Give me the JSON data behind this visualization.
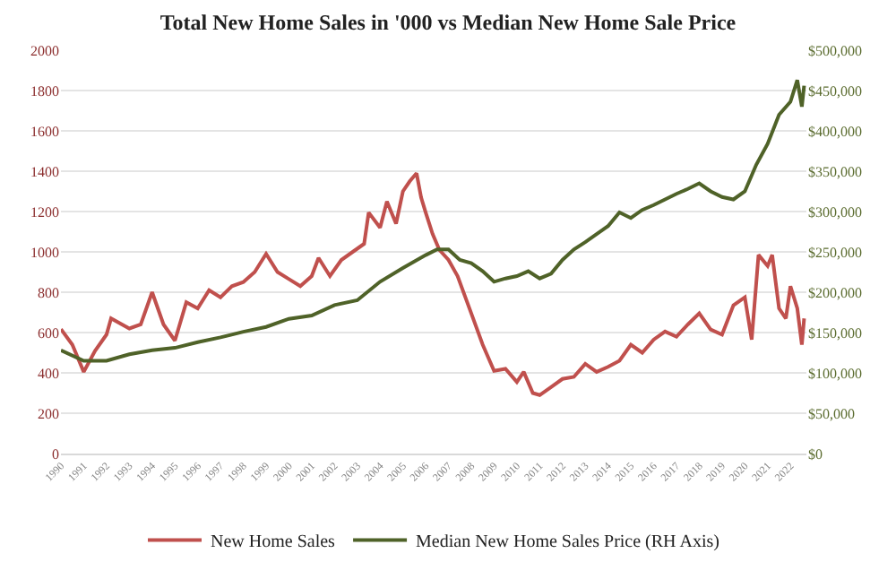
{
  "chart_data": {
    "type": "line",
    "title": "Total New Home Sales in '000 vs Median New Home Sale Price",
    "series": [
      {
        "name": "New Home Sales",
        "color": "#c0504d",
        "axis": "y",
        "x": [
          1990,
          1990.5,
          1991,
          1991.5,
          1992,
          1992.2,
          1993,
          1993.5,
          1994,
          1994.5,
          1995,
          1995.5,
          1996,
          1996.5,
          1997,
          1997.5,
          1998,
          1998.5,
          1999,
          1999.5,
          2000,
          2000.5,
          2001,
          2001.3,
          2001.8,
          2002.3,
          2002.8,
          2003.3,
          2003.5,
          2004,
          2004.3,
          2004.7,
          2005,
          2005.3,
          2005.6,
          2005.8,
          2006,
          2006.3,
          2006.6,
          2007,
          2007.4,
          2008,
          2008.5,
          2009,
          2009.5,
          2010,
          2010.3,
          2010.7,
          2011,
          2011.5,
          2012,
          2012.5,
          2013,
          2013.5,
          2014,
          2014.5,
          2015,
          2015.5,
          2016,
          2016.5,
          2017,
          2017.5,
          2018,
          2018.5,
          2019,
          2019.5,
          2020,
          2020.3,
          2020.6,
          2021,
          2021.2,
          2021.5,
          2021.8,
          2022,
          2022.3,
          2022.5,
          2022.6
        ],
        "values": [
          617,
          540,
          405,
          510,
          590,
          670,
          620,
          640,
          800,
          640,
          560,
          750,
          720,
          810,
          775,
          830,
          850,
          900,
          990,
          900,
          865,
          830,
          880,
          970,
          880,
          960,
          1000,
          1040,
          1195,
          1120,
          1250,
          1140,
          1300,
          1350,
          1390,
          1270,
          1195,
          1090,
          1010,
          960,
          880,
          695,
          540,
          410,
          420,
          355,
          405,
          300,
          290,
          330,
          370,
          380,
          445,
          405,
          430,
          460,
          540,
          500,
          565,
          605,
          580,
          640,
          695,
          615,
          590,
          735,
          775,
          565,
          985,
          930,
          985,
          720,
          670,
          830,
          720,
          540,
          670
        ]
      },
      {
        "name": "Median New Home Sales Price (RH Axis)",
        "color": "#4f6228",
        "axis": "y2",
        "x": [
          1990,
          1991,
          1992,
          1993,
          1994,
          1995,
          1996,
          1997,
          1998,
          1999,
          2000,
          2001,
          2002,
          2003,
          2004,
          2005,
          2006,
          2006.5,
          2007,
          2007.5,
          2008,
          2008.5,
          2009,
          2009.5,
          2010,
          2010.5,
          2011,
          2011.5,
          2012,
          2012.5,
          2013,
          2013.5,
          2014,
          2014.5,
          2015,
          2015.5,
          2016,
          2016.5,
          2017,
          2017.5,
          2018,
          2018.5,
          2019,
          2019.5,
          2020,
          2020.5,
          2021,
          2021.5,
          2022,
          2022.3,
          2022.5,
          2022.6
        ],
        "values": [
          128000,
          115000,
          115000,
          123000,
          128000,
          131000,
          138000,
          144000,
          151000,
          157000,
          167000,
          171000,
          184000,
          190000,
          213000,
          230000,
          246000,
          253000,
          253000,
          240000,
          236000,
          226000,
          213000,
          217000,
          220000,
          226000,
          217000,
          223000,
          240000,
          253000,
          262000,
          272000,
          282000,
          299000,
          292000,
          302000,
          308000,
          315000,
          322000,
          328000,
          335000,
          325000,
          318000,
          315000,
          325000,
          358000,
          384000,
          420000,
          436000,
          463000,
          430000,
          456000
        ]
      }
    ],
    "xlim": [
      1990,
      2022.7
    ],
    "xticks": [
      1990,
      1991,
      1992,
      1993,
      1994,
      1995,
      1996,
      1997,
      1998,
      1999,
      2000,
      2001,
      2002,
      2003,
      2004,
      2005,
      2006,
      2007,
      2008,
      2009,
      2010,
      2011,
      2012,
      2013,
      2014,
      2015,
      2016,
      2017,
      2018,
      2019,
      2020,
      2021,
      2022
    ],
    "ylim": [
      0,
      2000
    ],
    "yticks": [
      0,
      200,
      400,
      600,
      800,
      1000,
      1200,
      1400,
      1600,
      1800,
      2000
    ],
    "y2lim": [
      0,
      500000
    ],
    "y2ticks": [
      {
        "value": 0,
        "label": "$0"
      },
      {
        "value": 50000,
        "label": "$50,000"
      },
      {
        "value": 100000,
        "label": "$100,000"
      },
      {
        "value": 150000,
        "label": "$150,000"
      },
      {
        "value": 200000,
        "label": "$200,000"
      },
      {
        "value": 250000,
        "label": "$250,000"
      },
      {
        "value": 300000,
        "label": "$300,000"
      },
      {
        "value": 350000,
        "label": "$350,000"
      },
      {
        "value": 400000,
        "label": "$400,000"
      },
      {
        "value": 450000,
        "label": "$450,000"
      },
      {
        "value": 500000,
        "label": "$500,000"
      }
    ],
    "grid": "y",
    "legend": "bottom",
    "marker": "none",
    "line_style": "solid"
  }
}
